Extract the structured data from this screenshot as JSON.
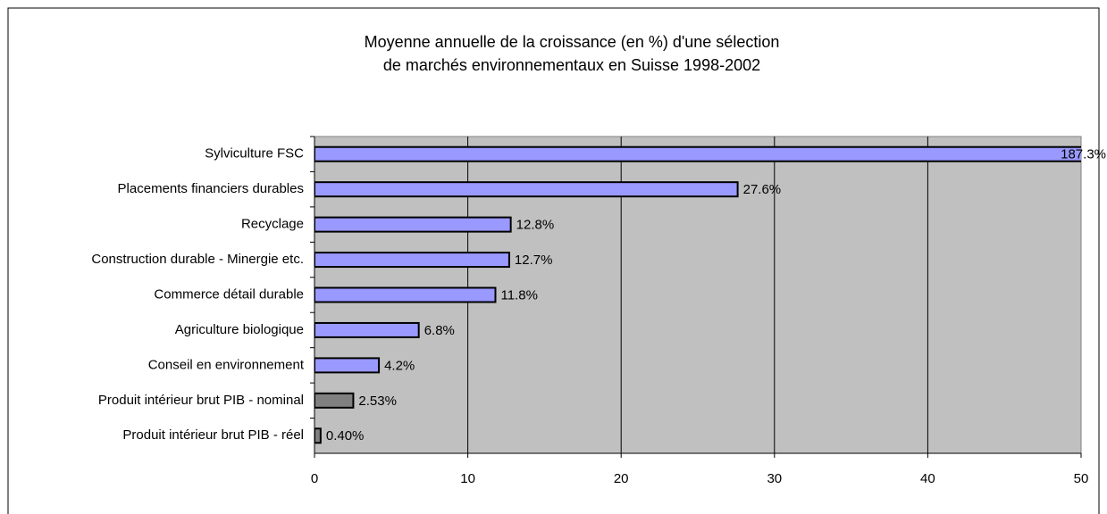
{
  "chart_data": {
    "type": "bar",
    "orientation": "horizontal",
    "title": [
      "Moyenne annuelle de la croissance (en %) d'une sélection",
      "de marchés environnementaux en Suisse 1998-2002"
    ],
    "categories": [
      "Sylviculture FSC",
      "Placements financiers durables",
      "Recyclage",
      "Construction durable - Minergie etc.",
      "Commerce détail durable",
      "Agriculture biologique",
      "Conseil en environnement",
      "Produit intérieur brut PIB - nominal",
      "Produit intérieur brut PIB - réel"
    ],
    "values": [
      187.3,
      27.6,
      12.8,
      12.7,
      11.8,
      6.8,
      4.2,
      2.53,
      0.4
    ],
    "value_labels": [
      "187.3%",
      "27.6%",
      "12.8%",
      "12.7%",
      "11.8%",
      "6.8%",
      "4.2%",
      "2.53%",
      "0.40%"
    ],
    "colors": [
      "#9999ff",
      "#9999ff",
      "#9999ff",
      "#9999ff",
      "#9999ff",
      "#9999ff",
      "#9999ff",
      "#808080",
      "#808080"
    ],
    "xlim": [
      0,
      50
    ],
    "xticks": [
      0,
      10,
      20,
      30,
      40,
      50
    ],
    "grid": true,
    "plot_background": "#c0c0c0"
  }
}
